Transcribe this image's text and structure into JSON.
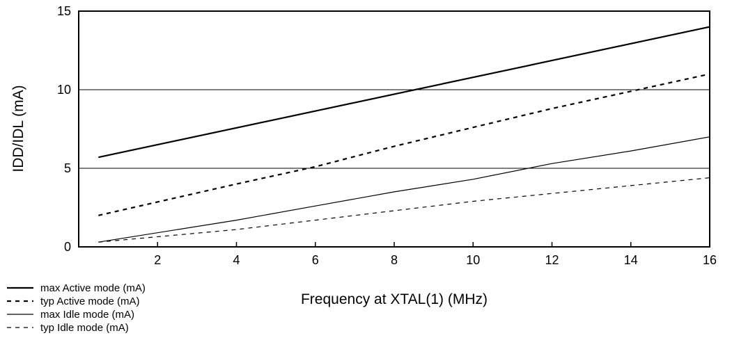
{
  "chart_data": {
    "type": "line",
    "title": "",
    "xlabel": "Frequency at XTAL(1) (MHz)",
    "ylabel": "IDD/IDL (mA)",
    "xlim": [
      0,
      16
    ],
    "ylim": [
      0,
      15
    ],
    "xticks": [
      2,
      4,
      6,
      8,
      10,
      12,
      14,
      16
    ],
    "xtick_labels": [
      "2",
      "4",
      "6",
      "8",
      "10",
      "12",
      "14",
      "16"
    ],
    "yticks": [
      0,
      5,
      10,
      15
    ],
    "ytick_labels": [
      "0",
      "5",
      "10",
      "15"
    ],
    "grid": "horizontal",
    "legend_position": "bottom-left",
    "series": [
      {
        "name": "max Active mode (mA)",
        "style": "solid-thick",
        "x": [
          0.5,
          16
        ],
        "y": [
          5.7,
          14.0
        ]
      },
      {
        "name": "typ Active mode (mA)",
        "style": "dashed-thick",
        "x": [
          0.5,
          4,
          6,
          8,
          10,
          12,
          14,
          16
        ],
        "y": [
          2.0,
          4.0,
          5.1,
          6.4,
          7.6,
          8.8,
          9.9,
          11.0
        ]
      },
      {
        "name": "max Idle mode (mA)",
        "style": "solid-thin",
        "x": [
          0.5,
          4,
          6,
          8,
          10,
          12,
          14,
          16
        ],
        "y": [
          0.3,
          1.7,
          2.6,
          3.5,
          4.3,
          5.3,
          6.1,
          7.0
        ]
      },
      {
        "name": "typ Idle mode (mA)",
        "style": "dashed-thin",
        "x": [
          0.5,
          4,
          6,
          8,
          10,
          12,
          14,
          16
        ],
        "y": [
          0.3,
          1.1,
          1.7,
          2.3,
          2.9,
          3.4,
          3.9,
          4.4
        ]
      }
    ]
  }
}
